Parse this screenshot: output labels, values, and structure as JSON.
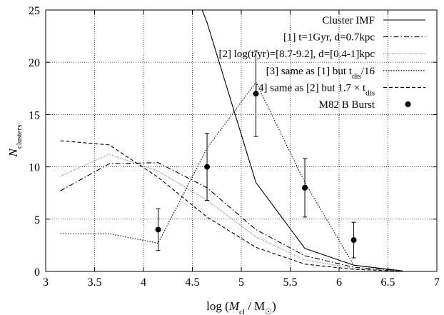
{
  "chart_data": {
    "type": "line",
    "xlabel_parts": [
      "log (",
      "M",
      "cl",
      " / M",
      "☉",
      ")"
    ],
    "ylabel_parts": [
      "N",
      "clusters"
    ],
    "xlim": [
      3,
      7
    ],
    "ylim": [
      0,
      25
    ],
    "xticks": [
      3,
      3.5,
      4,
      4.5,
      5,
      5.5,
      6,
      6.5,
      7
    ],
    "xtick_labels": [
      "3",
      "3.5",
      "4",
      "4.5",
      "5",
      "5.5",
      "6",
      "6.5",
      "7"
    ],
    "yticks": [
      0,
      5,
      10,
      15,
      20,
      25
    ],
    "ytick_labels": [
      "0",
      "5",
      "10",
      "15",
      "20",
      "25"
    ],
    "grid": true,
    "legend_position": "top-right",
    "series": [
      {
        "name": "Cluster IMF",
        "legend_parts": [
          "Cluster IMF"
        ],
        "style": "solid",
        "color": "#000000",
        "x": [
          4.6,
          4.65,
          5.15,
          5.65,
          6.15,
          6.65
        ],
        "y": [
          25,
          23.8,
          8.5,
          2.2,
          0.6,
          0.05
        ]
      },
      {
        "name": "[1] t=1Gyr, d=0.7kpc",
        "legend_parts": [
          "[1] t=1Gyr, d=0.7kpc"
        ],
        "style": "dashdot",
        "color": "#000000",
        "x": [
          3.15,
          3.65,
          4.15,
          4.65,
          5.15,
          5.65,
          6.15,
          6.65
        ],
        "y": [
          7.7,
          10.3,
          10.4,
          8.0,
          4.0,
          1.5,
          0.4,
          0.05
        ]
      },
      {
        "name": "[2] log(t/yr)=[8.7-9.2], d=[0.4-1]kpc",
        "legend_parts": [
          "[2] log(t/yr)=[8.7-9.2], d=[0.4-1]kpc"
        ],
        "style": "dotted-light",
        "color": "#8c8c8c",
        "x": [
          3.15,
          3.65,
          4.15,
          4.65,
          5.15,
          5.65,
          6.15,
          6.65
        ],
        "y": [
          9.1,
          11.2,
          9.6,
          6.8,
          3.3,
          1.1,
          0.3,
          0.03
        ]
      },
      {
        "name": "[3] same as [1] but t_dis/16",
        "legend_parts": [
          "[3] same as [1] but t",
          "dis",
          "/16"
        ],
        "style": "dotted",
        "color": "#000000",
        "x": [
          3.15,
          3.65,
          4.15,
          4.65,
          5.15,
          5.65,
          6.15,
          6.65
        ],
        "y": [
          3.6,
          3.6,
          2.7,
          11.8,
          18.1,
          8.5,
          0.6,
          0.05
        ]
      },
      {
        "name": "[4] same as [2] but 1.7 × t_dis",
        "legend_parts": [
          "[4] same as [2] but 1.7 × t",
          "dis",
          ""
        ],
        "style": "dashed",
        "color": "#000000",
        "x": [
          3.15,
          3.65,
          4.15,
          4.65,
          5.15,
          5.65,
          6.15,
          6.65
        ],
        "y": [
          12.5,
          12.1,
          9.0,
          5.2,
          2.3,
          0.7,
          0.2,
          0.02
        ]
      }
    ],
    "points": {
      "name": "M82 B Burst",
      "legend_parts": [
        "M82 B Burst"
      ],
      "x": [
        4.15,
        4.65,
        5.15,
        5.65,
        6.15
      ],
      "y": [
        4.0,
        10.0,
        17.0,
        8.0,
        3.0
      ],
      "err_low": [
        2.0,
        6.8,
        12.9,
        5.2,
        1.3
      ],
      "err_high": [
        6.0,
        13.2,
        21.1,
        10.8,
        4.7
      ]
    }
  }
}
